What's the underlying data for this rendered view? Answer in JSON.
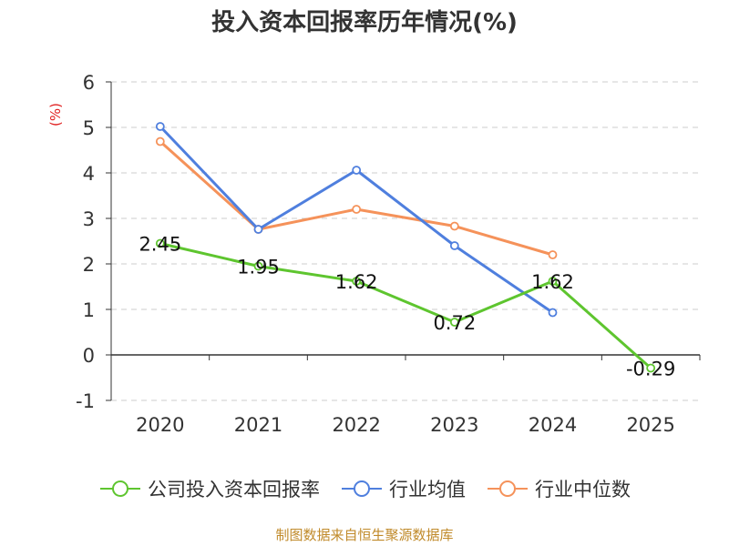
{
  "chart_data": {
    "type": "line",
    "title": "投入资本回报率历年情况(%)",
    "ylabel": "(%)",
    "xlabel": "",
    "categories": [
      "2020",
      "2021",
      "2022",
      "2023",
      "2024",
      "2025"
    ],
    "ylim": [
      -1,
      6
    ],
    "yticks": [
      -1,
      0,
      1,
      2,
      3,
      4,
      5,
      6
    ],
    "grid": true,
    "legend_position": "bottom",
    "series": [
      {
        "name": "公司投入资本回报率",
        "color": "#5ec52f",
        "values": [
          2.45,
          1.95,
          1.62,
          0.72,
          1.62,
          -0.29
        ],
        "labels": [
          "2.45",
          "1.95",
          "1.62",
          "0.72",
          "1.62",
          "-0.29"
        ]
      },
      {
        "name": "行业均值",
        "color": "#4f7fde",
        "values": [
          5.02,
          2.76,
          4.06,
          2.4,
          0.93,
          null
        ]
      },
      {
        "name": "行业中位数",
        "color": "#f5925a",
        "values": [
          4.69,
          2.76,
          3.2,
          2.83,
          2.2,
          null
        ]
      }
    ]
  },
  "source_note": "制图数据来自恒生聚源数据库"
}
